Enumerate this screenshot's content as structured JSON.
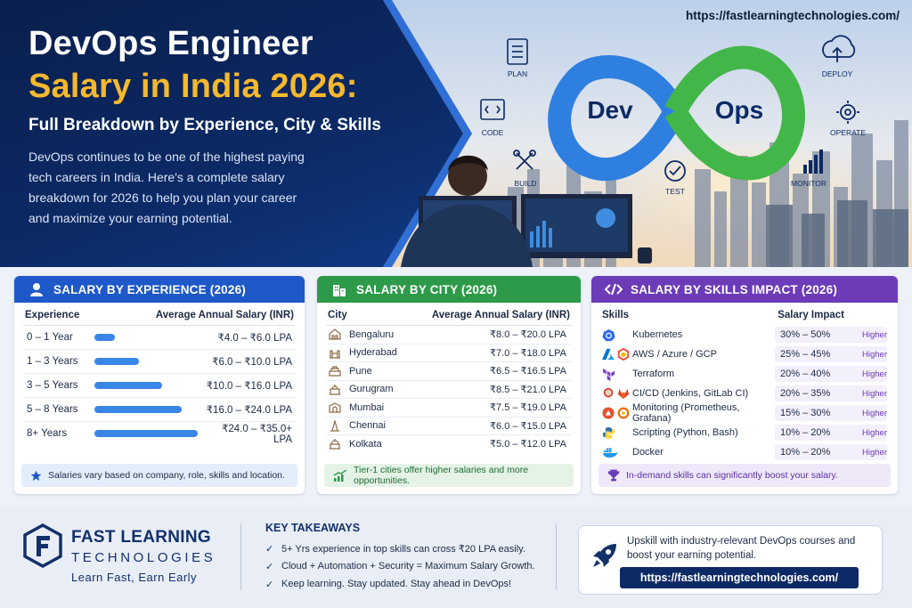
{
  "hero": {
    "title_line1": "DevOps Engineer",
    "title_line2": "Salary in India 2026:",
    "subtitle": "Full Breakdown by Experience, City & Skills",
    "intro": "DevOps continues to be one of the highest paying tech careers in India. Here's a complete salary breakdown for 2026 to help you plan your career and maximize your earning potential.",
    "url": "https://fastlearningtechnologies.com/",
    "infinity_left": "Dev",
    "infinity_right": "Ops",
    "stages": [
      "PLAN",
      "CODE",
      "BUILD",
      "TEST",
      "DEPLOY",
      "OPERATE",
      "MONITOR"
    ]
  },
  "experience": {
    "title": "SALARY BY EXPERIENCE (2026)",
    "col_label": "Experience",
    "col_value": "Average Annual Salary (INR)",
    "rows": [
      {
        "label": "0 – 1 Year",
        "value": "₹4.0 – ₹6.0 LPA",
        "bar": 0.18
      },
      {
        "label": "1 – 3 Years",
        "value": "₹6.0 – ₹10.0 LPA",
        "bar": 0.4
      },
      {
        "label": "3 – 5 Years",
        "value": "₹10.0 – ₹16.0 LPA",
        "bar": 0.61
      },
      {
        "label": "5 – 8 Years",
        "value": "₹16.0 – ₹24.0 LPA",
        "bar": 0.78
      },
      {
        "label": "8+ Years",
        "value": "₹24.0 – ₹35.0+ LPA",
        "bar": 0.93
      }
    ],
    "note": "Salaries vary based on company, role, skills and location."
  },
  "city": {
    "title": "SALARY BY CITY (2026)",
    "col_label": "City",
    "col_value": "Average Annual Salary (INR)",
    "rows": [
      {
        "label": "Bengaluru",
        "value": "₹8.0 – ₹20.0 LPA"
      },
      {
        "label": "Hyderabad",
        "value": "₹7.0 – ₹18.0 LPA"
      },
      {
        "label": "Pune",
        "value": "₹6.5 – ₹16.5 LPA"
      },
      {
        "label": "Gurugram",
        "value": "₹8.5 – ₹21.0 LPA"
      },
      {
        "label": "Mumbai",
        "value": "₹7.5 – ₹19.0 LPA"
      },
      {
        "label": "Chennai",
        "value": "₹6.0 – ₹15.0 LPA"
      },
      {
        "label": "Kolkata",
        "value": "₹5.0 – ₹12.0 LPA"
      }
    ],
    "note": "Tier-1 cities offer higher salaries and more opportunities."
  },
  "skills": {
    "title": "SALARY BY SKILLS IMPACT (2026)",
    "col_label": "Skills",
    "col_value": "Salary Impact",
    "higher_label": "Higher",
    "rows": [
      {
        "label": "Kubernetes",
        "range": "30% – 50%",
        "icons": [
          "kubernetes-icon"
        ]
      },
      {
        "label": "AWS / Azure / GCP",
        "range": "25% – 45%",
        "icons": [
          "azure-icon",
          "gcp-icon"
        ]
      },
      {
        "label": "Terraform",
        "range": "20% – 40%",
        "icons": [
          "terraform-icon"
        ]
      },
      {
        "label": "CI/CD (Jenkins, GitLab CI)",
        "range": "20% – 35%",
        "icons": [
          "jenkins-icon",
          "gitlab-icon"
        ]
      },
      {
        "label": "Monitoring (Prometheus, Grafana)",
        "range": "15% – 30%",
        "icons": [
          "prometheus-icon",
          "grafana-icon"
        ]
      },
      {
        "label": "Scripting (Python, Bash)",
        "range": "10% – 20%",
        "icons": [
          "python-icon"
        ]
      },
      {
        "label": "Docker",
        "range": "10% – 20%",
        "icons": [
          "docker-icon"
        ]
      }
    ],
    "note": "In-demand skills can significantly boost your salary."
  },
  "footer": {
    "brand_line1": "FAST LEARNING",
    "brand_line2": "TECHNOLOGIES",
    "tagline": "Learn Fast, Earn Early",
    "takeaways_title": "KEY TAKEAWAYS",
    "takeaways": [
      "5+ Yrs experience in top skills can cross ₹20 LPA easily.",
      "Cloud + Automation + Security = Maximum Salary Growth.",
      "Keep learning. Stay updated. Stay ahead in DevOps!"
    ],
    "cta_text": "Upskill with industry-relevant DevOps courses and boost your earning potential.",
    "cta_url": "https://fastlearningtechnologies.com/"
  },
  "colors": {
    "navy": "#0c2a66",
    "gold": "#f5b82e",
    "experience": "#1e58c9",
    "city": "#2c9a48",
    "skills": "#6b3bb8",
    "dev_blue": "#2f7fe0",
    "ops_green": "#43b649"
  }
}
